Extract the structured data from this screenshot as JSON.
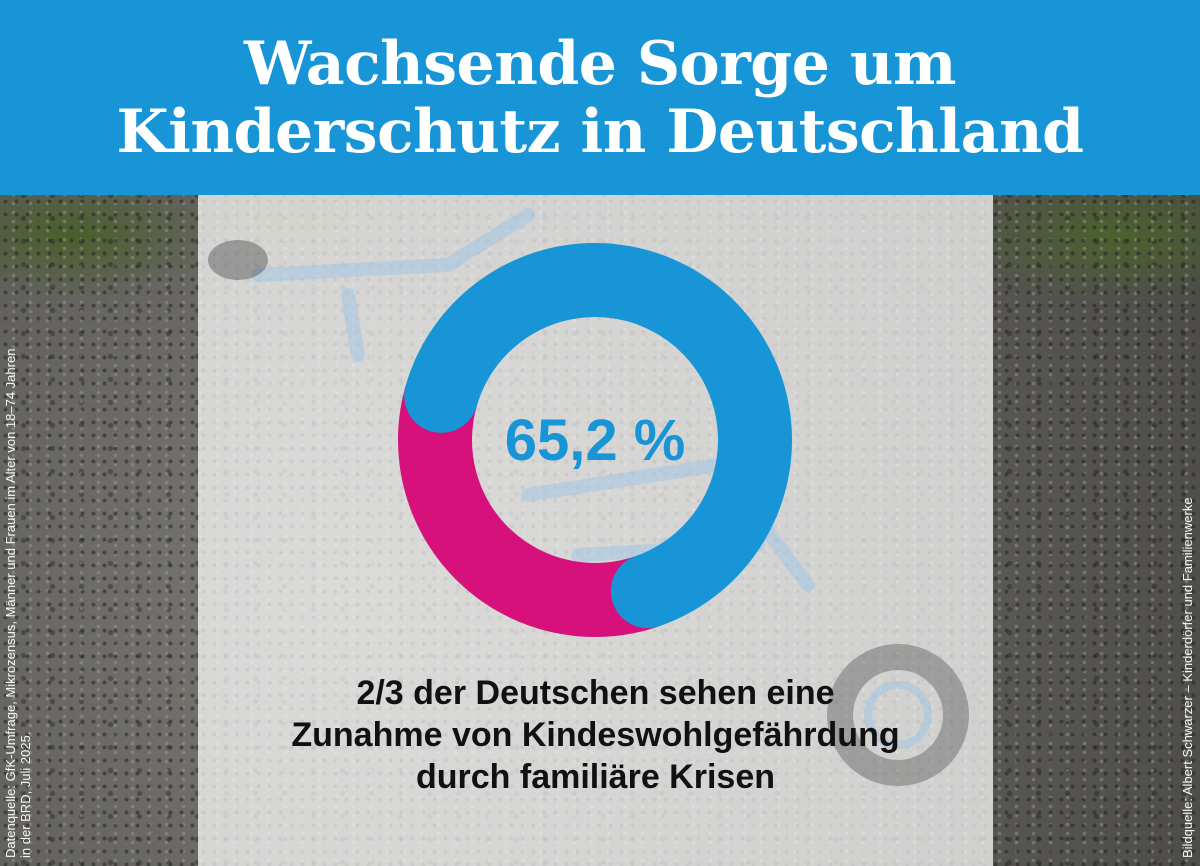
{
  "header": {
    "title_lines": [
      "Wachsende Sorge um",
      "Kinderschutz in Deutschland"
    ]
  },
  "chart_data": {
    "type": "pie",
    "donut": true,
    "title": "Wachsende Sorge um Kinderschutz in Deutschland",
    "center_label": "65,2 %",
    "slices": [
      {
        "value": 65.2,
        "color": "#1795d7"
      },
      {
        "value": 34.8,
        "color": "#d6117c"
      }
    ],
    "caption_lines": [
      "2/3 der Deutschen sehen eine",
      "Zunahme von Kindeswohlgefährdung",
      "durch familiäre Krisen"
    ]
  },
  "source_notes": {
    "data_source_lines": [
      "Datenquelle: GfK-Umfrage, Mikrozensus, Männer und Frauen im Alter von 18–74 Jahren",
      "in der BRD, Juli 2025."
    ],
    "image_source": "Bildquelle: Albert Schwarzer – Kinderdörfer und Familienwerke"
  },
  "colors": {
    "brand_blue": "#1795d7",
    "accent_magenta": "#d6117c"
  }
}
